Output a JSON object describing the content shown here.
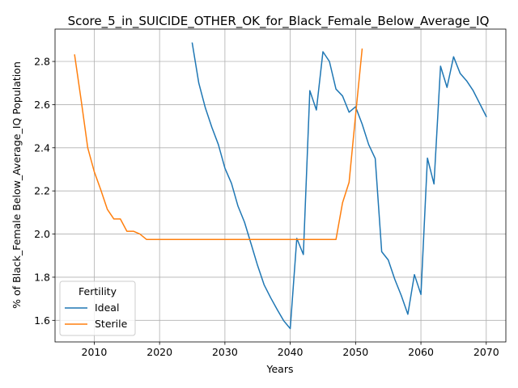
{
  "chart_data": {
    "type": "line",
    "title": "Score_5_in_SUICIDE_OTHER_OK_for_Black_Female_Below_Average_IQ",
    "xlabel": "Years",
    "ylabel": "% of Black_Female Below_Average_IQ Population",
    "xlim": [
      2004,
      2073
    ],
    "ylim": [
      1.5,
      2.95
    ],
    "xticks": [
      2010,
      2020,
      2030,
      2040,
      2050,
      2060,
      2070
    ],
    "yticks": [
      1.6,
      1.8,
      2.0,
      2.2,
      2.4,
      2.6,
      2.8
    ],
    "grid": true,
    "legend": {
      "title": "Fertility",
      "position": "lower-left"
    },
    "series": [
      {
        "name": "Ideal",
        "color": "#1f77b4",
        "x": [
          2025,
          2026,
          2027,
          2028,
          2029,
          2030,
          2031,
          2032,
          2033,
          2034,
          2035,
          2036,
          2037,
          2038,
          2039,
          2040,
          2041,
          2042,
          2043,
          2044,
          2045,
          2046,
          2047,
          2048,
          2049,
          2050,
          2051,
          2052,
          2053,
          2054,
          2055,
          2056,
          2057,
          2058,
          2059,
          2060,
          2061,
          2062,
          2063,
          2064,
          2065,
          2066,
          2067,
          2068,
          2069,
          2070
        ],
        "y": [
          2.885,
          2.7,
          2.585,
          2.495,
          2.415,
          2.305,
          2.235,
          2.13,
          2.055,
          1.955,
          1.855,
          1.765,
          1.705,
          1.65,
          1.598,
          1.562,
          1.98,
          1.905,
          2.665,
          2.575,
          2.845,
          2.8,
          2.672,
          2.64,
          2.565,
          2.59,
          2.51,
          2.415,
          2.35,
          1.918,
          1.88,
          1.79,
          1.715,
          1.628,
          1.812,
          1.72,
          2.352,
          2.232,
          2.778,
          2.68,
          2.822,
          2.745,
          2.71,
          2.665,
          2.605,
          2.545
        ]
      },
      {
        "name": "Sterile",
        "color": "#ff7f0e",
        "x": [
          2007,
          2008,
          2009,
          2010,
          2011,
          2012,
          2013,
          2014,
          2015,
          2016,
          2017,
          2018,
          2019,
          2020,
          2025,
          2030,
          2035,
          2040,
          2045,
          2046,
          2047,
          2048,
          2049,
          2050,
          2051
        ],
        "y": [
          2.83,
          2.62,
          2.4,
          2.29,
          2.205,
          2.115,
          2.07,
          2.07,
          2.013,
          2.013,
          2.0,
          1.975,
          1.975,
          1.975,
          1.975,
          1.975,
          1.975,
          1.975,
          1.975,
          1.975,
          1.975,
          2.145,
          2.24,
          2.55,
          2.857
        ]
      }
    ]
  }
}
